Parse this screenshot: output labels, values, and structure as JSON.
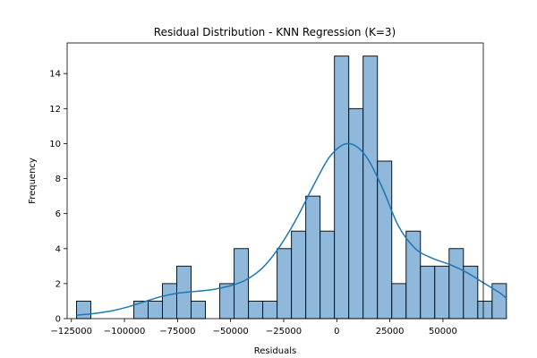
{
  "chart_data": {
    "type": "bar",
    "title": "Residual Distribution - KNN Regression (K=3)",
    "xlabel": "Residuals",
    "ylabel": "Frequency",
    "xlim": [
      -127000,
      69000
    ],
    "ylim": [
      0,
      15.75
    ],
    "bin_width": 6750,
    "bins": [
      {
        "start": -122600,
        "end": -115850,
        "count": 1
      },
      {
        "start": -115850,
        "end": -109100,
        "count": 0
      },
      {
        "start": -109100,
        "end": -102350,
        "count": 0
      },
      {
        "start": -102350,
        "end": -95600,
        "count": 0
      },
      {
        "start": -95600,
        "end": -88850,
        "count": 1
      },
      {
        "start": -88850,
        "end": -82100,
        "count": 1
      },
      {
        "start": -82100,
        "end": -75350,
        "count": 2
      },
      {
        "start": -75350,
        "end": -68600,
        "count": 3
      },
      {
        "start": -68600,
        "end": -61850,
        "count": 1
      },
      {
        "start": -61850,
        "end": -55100,
        "count": 0
      },
      {
        "start": -55100,
        "end": -48350,
        "count": 2
      },
      {
        "start": -48350,
        "end": -41600,
        "count": 4
      },
      {
        "start": -41600,
        "end": -34850,
        "count": 1
      },
      {
        "start": -34850,
        "end": -28100,
        "count": 1
      },
      {
        "start": -28100,
        "end": -21350,
        "count": 4
      },
      {
        "start": -21350,
        "end": -14600,
        "count": 5
      },
      {
        "start": -14600,
        "end": -7850,
        "count": 7
      },
      {
        "start": -7850,
        "end": -1100,
        "count": 5
      },
      {
        "start": -1100,
        "end": 5650,
        "count": 15
      },
      {
        "start": 5650,
        "end": 12400,
        "count": 12
      },
      {
        "start": 12400,
        "end": 19150,
        "count": 15
      },
      {
        "start": 19150,
        "end": 25900,
        "count": 9
      },
      {
        "start": 25900,
        "end": 32650,
        "count": 2
      },
      {
        "start": 32650,
        "end": 39400,
        "count": 5
      },
      {
        "start": 39400,
        "end": 46150,
        "count": 3
      },
      {
        "start": 46150,
        "end": 52900,
        "count": 3
      },
      {
        "start": 52900,
        "end": 59650,
        "count": 4
      },
      {
        "start": 59650,
        "end": 66400,
        "count": 3
      },
      {
        "start": 66400,
        "end": 73150,
        "count": 1
      },
      {
        "start": 73150,
        "end": 79900,
        "count": 2
      }
    ],
    "kde": {
      "x": [
        -122600,
        -115000,
        -107000,
        -99000,
        -91000,
        -83000,
        -75000,
        -67000,
        -59000,
        -51000,
        -43000,
        -35000,
        -27000,
        -19000,
        -11000,
        -3000,
        5000,
        13000,
        21000,
        29000,
        37000,
        45000,
        53000,
        61000,
        69000,
        77000,
        79900
      ],
      "y": [
        0.2,
        0.28,
        0.42,
        0.65,
        0.95,
        1.25,
        1.45,
        1.55,
        1.65,
        1.85,
        2.2,
        2.9,
        4.1,
        5.7,
        7.6,
        9.3,
        10.0,
        9.4,
        7.6,
        5.3,
        4.0,
        3.45,
        3.1,
        2.65,
        2.05,
        1.45,
        1.15
      ]
    },
    "xticks": [
      -125000,
      -100000,
      -75000,
      -50000,
      -25000,
      0,
      25000,
      50000
    ],
    "xtick_labels": [
      "−125000",
      "−100000",
      "−75000",
      "−50000",
      "−25000",
      "0",
      "25000",
      "50000"
    ],
    "yticks": [
      0,
      2,
      4,
      6,
      8,
      10,
      12,
      14
    ],
    "ytick_labels": [
      "0",
      "2",
      "4",
      "6",
      "8",
      "10",
      "12",
      "14"
    ],
    "grid": false,
    "legend": "none",
    "colors": {
      "bar_fill": "#8fb8da",
      "bar_edge": "#000000",
      "kde_line": "#1f77b4"
    }
  }
}
